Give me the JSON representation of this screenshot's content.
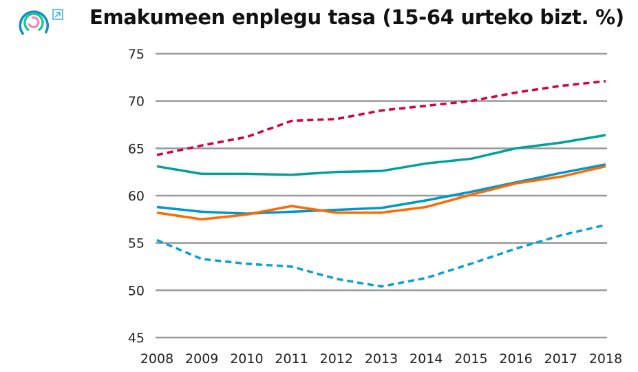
{
  "chart_data": {
    "type": "line",
    "title": "Emakumeen enplegu tasa (15-64 urteko bizt. %)",
    "xlabel": "",
    "ylabel": "",
    "x": [
      2008,
      2009,
      2010,
      2011,
      2012,
      2013,
      2014,
      2015,
      2016,
      2017,
      2018
    ],
    "ylim": [
      45,
      75
    ],
    "yticks": [
      45,
      50,
      55,
      60,
      65,
      70,
      75
    ],
    "grid": true,
    "series": [
      {
        "color": "#d4003b",
        "dash": true,
        "values": [
          64.3,
          65.3,
          66.2,
          67.9,
          68.1,
          69.0,
          69.5,
          70.0,
          70.9,
          71.6,
          72.1
        ]
      },
      {
        "color": "#00a19a",
        "dash": false,
        "values": [
          63.1,
          62.3,
          62.3,
          62.2,
          62.5,
          62.6,
          63.4,
          63.9,
          65.0,
          65.6,
          66.4
        ]
      },
      {
        "color": "#0096cc",
        "dash": false,
        "values": [
          58.8,
          58.3,
          58.1,
          58.3,
          58.5,
          58.7,
          59.5,
          60.4,
          61.4,
          62.4,
          63.3
        ]
      },
      {
        "color": "#ff6a00",
        "dash": false,
        "values": [
          58.2,
          57.5,
          58.0,
          58.9,
          58.2,
          58.2,
          58.8,
          60.1,
          61.3,
          62.0,
          63.1
        ]
      },
      {
        "color": "#0aa0d0",
        "dash": true,
        "values": [
          55.3,
          53.3,
          52.8,
          52.5,
          51.2,
          50.4,
          51.3,
          52.8,
          54.4,
          55.8,
          56.9
        ]
      }
    ]
  },
  "icons": {
    "logo": "circular-logo-icon",
    "external": "external-link-icon"
  }
}
